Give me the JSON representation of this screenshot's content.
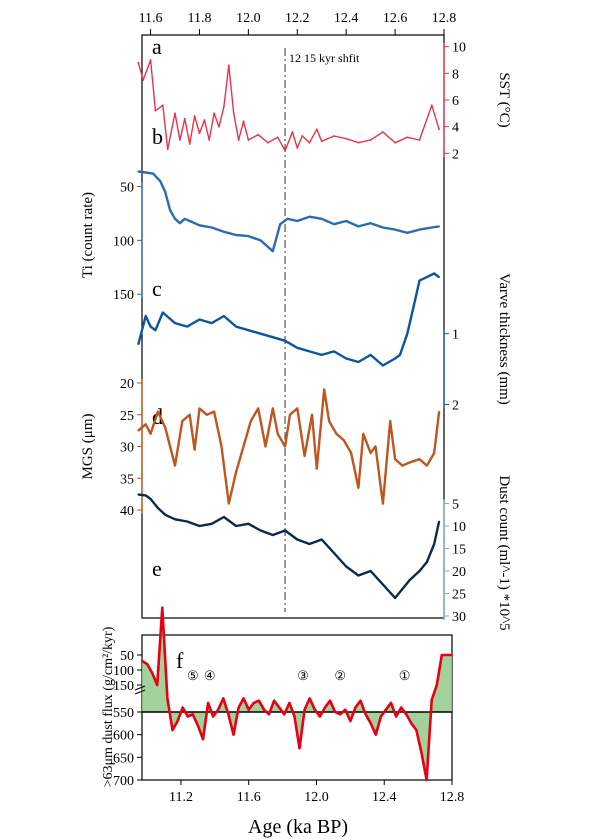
{
  "chart_data": [
    {
      "panel": "a",
      "type": "line",
      "top_axis": {
        "ticks": [
          11.6,
          11.8,
          12.0,
          12.2,
          12.4,
          12.6,
          12.8
        ],
        "labels": [
          "11.6",
          "11.8",
          "12.0",
          "12.2",
          "12.4",
          "12.6",
          "12.8"
        ]
      },
      "annotation": "12 15 kyr shfit",
      "annotation_x": 12.15,
      "ylabel": "SST (°C)",
      "yaxis_side": "right",
      "yticks": [
        2,
        4,
        6,
        8,
        10
      ],
      "series": [
        {
          "color": "#e8334a",
          "x": [
            11.55,
            11.57,
            11.6,
            11.62,
            11.65,
            11.67,
            11.7,
            11.72,
            11.74,
            11.76,
            11.78,
            11.8,
            11.82,
            11.84,
            11.86,
            11.88,
            11.9,
            11.92,
            11.94,
            11.96,
            11.98,
            12.0,
            12.04,
            12.08,
            12.12,
            12.15,
            12.18,
            12.2,
            12.22,
            12.25,
            12.28,
            12.3,
            12.35,
            12.4,
            12.45,
            12.5,
            12.55,
            12.6,
            12.65,
            12.7,
            12.75,
            12.78
          ],
          "values": [
            8.8,
            7.5,
            9.0,
            5.2,
            5.6,
            2.3,
            5.0,
            3.0,
            4.6,
            2.7,
            4.8,
            3.5,
            4.5,
            3.0,
            5.0,
            4.0,
            5.5,
            8.6,
            5.0,
            3.0,
            4.4,
            3.0,
            3.4,
            2.8,
            3.2,
            2.2,
            3.6,
            2.4,
            3.3,
            2.8,
            3.8,
            2.9,
            3.3,
            3.1,
            2.8,
            3.0,
            3.6,
            2.8,
            3.2,
            3.0,
            5.6,
            3.8
          ]
        }
      ]
    },
    {
      "panel": "b",
      "type": "line",
      "ylabel": "Ti (count rate)",
      "yaxis_side": "left",
      "yticks": [
        50,
        100,
        150
      ],
      "series": [
        {
          "color": "#2b6cb0",
          "x": [
            11.55,
            11.58,
            11.61,
            11.64,
            11.66,
            11.68,
            11.7,
            11.72,
            11.74,
            11.76,
            11.8,
            11.85,
            11.9,
            11.95,
            12.0,
            12.05,
            12.1,
            12.13,
            12.16,
            12.2,
            12.25,
            12.3,
            12.35,
            12.4,
            12.45,
            12.5,
            12.55,
            12.6,
            12.65,
            12.7,
            12.75,
            12.78
          ],
          "values": [
            36,
            37,
            38,
            45,
            55,
            72,
            80,
            84,
            80,
            82,
            86,
            88,
            92,
            95,
            96,
            100,
            110,
            85,
            80,
            82,
            78,
            80,
            85,
            82,
            87,
            84,
            88,
            90,
            93,
            90,
            88,
            87
          ]
        }
      ]
    },
    {
      "panel": "c",
      "type": "line",
      "ylabel": "Varve thickness (mm)",
      "yaxis_side": "right",
      "yticks": [
        1,
        2
      ],
      "series": [
        {
          "color": "#0c55a0",
          "x": [
            11.55,
            11.58,
            11.6,
            11.62,
            11.65,
            11.7,
            11.75,
            11.8,
            11.85,
            11.9,
            11.95,
            12.0,
            12.05,
            12.1,
            12.15,
            12.2,
            12.25,
            12.3,
            12.35,
            12.4,
            12.45,
            12.5,
            12.55,
            12.6,
            12.62,
            12.65,
            12.68,
            12.7,
            12.73,
            12.76,
            12.78
          ],
          "values": [
            1.15,
            0.75,
            0.9,
            0.95,
            0.7,
            0.85,
            0.9,
            0.8,
            0.85,
            0.75,
            0.9,
            0.95,
            1.0,
            1.05,
            1.1,
            1.2,
            1.25,
            1.3,
            1.25,
            1.35,
            1.4,
            1.3,
            1.45,
            1.35,
            1.3,
            1.0,
            0.55,
            0.25,
            0.2,
            0.15,
            0.2
          ]
        }
      ]
    },
    {
      "panel": "d",
      "type": "line",
      "ylabel": "MGS (μm)",
      "yaxis_side": "left",
      "yticks": [
        20,
        25,
        30,
        35,
        40
      ],
      "series": [
        {
          "color": "#c0561e",
          "x": [
            11.55,
            11.58,
            11.6,
            11.63,
            11.66,
            11.7,
            11.73,
            11.76,
            11.78,
            11.8,
            11.83,
            11.86,
            11.89,
            11.92,
            11.95,
            11.98,
            12.01,
            12.04,
            12.07,
            12.1,
            12.12,
            12.15,
            12.17,
            12.2,
            12.23,
            12.26,
            12.28,
            12.31,
            12.33,
            12.36,
            12.39,
            12.42,
            12.45,
            12.47,
            12.5,
            12.52,
            12.55,
            12.58,
            12.6,
            12.63,
            12.66,
            12.7,
            12.73,
            12.76,
            12.78
          ],
          "values": [
            27.5,
            26.5,
            28.0,
            24.5,
            27.0,
            33.0,
            26.0,
            25.0,
            30.5,
            24.0,
            25.0,
            24.5,
            30.0,
            39.0,
            34.0,
            30.0,
            26.0,
            24.0,
            30.0,
            24.0,
            28.0,
            30.0,
            25.0,
            24.0,
            31.5,
            25.0,
            33.5,
            21.0,
            26.0,
            28.0,
            29.0,
            31.0,
            36.5,
            28.0,
            31.0,
            30.0,
            39.0,
            26.0,
            32.0,
            33.0,
            32.5,
            32.0,
            33.0,
            31.0,
            24.5
          ]
        }
      ]
    },
    {
      "panel": "e",
      "type": "line",
      "ylabel": "Dust count (ml^-1) *10^5",
      "yaxis_side": "right",
      "yticks": [
        5,
        10,
        15,
        20,
        25,
        30
      ],
      "series": [
        {
          "color": "#0b2a4f",
          "x": [
            11.55,
            11.58,
            11.6,
            11.63,
            11.66,
            11.7,
            11.75,
            11.8,
            11.85,
            11.9,
            11.95,
            12.0,
            12.05,
            12.1,
            12.15,
            12.2,
            12.25,
            12.3,
            12.35,
            12.4,
            12.45,
            12.5,
            12.55,
            12.6,
            12.63,
            12.66,
            12.7,
            12.73,
            12.76,
            12.78
          ],
          "values": [
            3.0,
            3.2,
            4.0,
            6.0,
            7.5,
            8.5,
            9.0,
            10.0,
            9.5,
            8.0,
            10.0,
            9.5,
            11.0,
            12.0,
            11.0,
            13.0,
            14.0,
            13.0,
            16.0,
            19.0,
            21.0,
            20.0,
            23.0,
            26.0,
            24.0,
            22.0,
            20.0,
            18.0,
            14.0,
            9.0
          ]
        }
      ]
    },
    {
      "panel": "f",
      "type": "area",
      "xlabel": "Age (ka BP)",
      "xticks": [
        11.2,
        11.6,
        12.0,
        12.4,
        12.8
      ],
      "xtick_labels": [
        "11.2",
        "11.6",
        "12.0",
        "12.4",
        "12.8"
      ],
      "xlim": [
        10.97,
        12.8
      ],
      "ylabel": ">63μm dust flux (g/cm²/kyr)",
      "yticks": [
        50,
        100,
        150,
        550,
        600,
        650,
        700
      ],
      "ytick_labels": [
        "50",
        "100",
        "150",
        "550",
        "600",
        "650",
        "700"
      ],
      "reference_line": 550,
      "event_labels": [
        {
          "text": "⑤",
          "x": 11.27
        },
        {
          "text": "④",
          "x": 11.37
        },
        {
          "text": "③",
          "x": 11.92
        },
        {
          "text": "②",
          "x": 12.14
        },
        {
          "text": "①",
          "x": 12.52
        }
      ],
      "series": [
        {
          "color": "#e60012",
          "fill_color": "#93c98a",
          "x": [
            10.97,
            11.0,
            11.03,
            11.06,
            11.09,
            11.12,
            11.15,
            11.18,
            11.21,
            11.24,
            11.27,
            11.3,
            11.33,
            11.36,
            11.39,
            11.42,
            11.45,
            11.48,
            11.51,
            11.54,
            11.57,
            11.6,
            11.63,
            11.66,
            11.69,
            11.72,
            11.75,
            11.78,
            11.81,
            11.84,
            11.87,
            11.9,
            11.93,
            11.96,
            11.99,
            12.02,
            12.05,
            12.08,
            12.11,
            12.14,
            12.17,
            12.2,
            12.23,
            12.26,
            12.29,
            12.32,
            12.35,
            12.38,
            12.41,
            12.44,
            12.47,
            12.5,
            12.53,
            12.56,
            12.59,
            12.62,
            12.65,
            12.68,
            12.71,
            12.74,
            12.77,
            12.8
          ],
          "values": [
            70,
            80,
            110,
            150,
            320,
            520,
            590,
            570,
            540,
            560,
            555,
            580,
            610,
            530,
            560,
            545,
            520,
            555,
            600,
            540,
            520,
            545,
            530,
            525,
            545,
            555,
            525,
            540,
            555,
            530,
            560,
            630,
            545,
            520,
            545,
            560,
            540,
            525,
            550,
            555,
            545,
            570,
            540,
            525,
            555,
            575,
            600,
            560,
            545,
            530,
            560,
            540,
            555,
            575,
            590,
            640,
            700,
            200,
            150,
            50,
            50,
            50
          ]
        }
      ]
    }
  ]
}
